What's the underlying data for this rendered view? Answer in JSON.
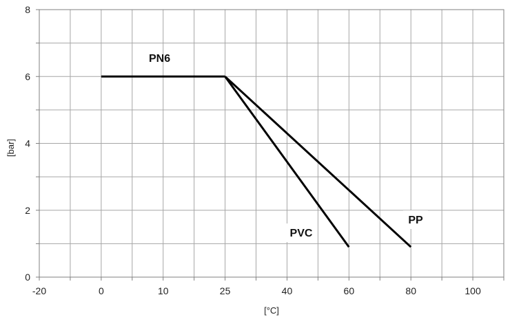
{
  "chart_data": {
    "type": "line",
    "xlabel": "[°C]",
    "ylabel": "[bar]",
    "x_tick_labels": [
      "-20",
      "0",
      "10",
      "25",
      "40",
      "60",
      "80",
      "100"
    ],
    "y_ticks": [
      0,
      2,
      4,
      6,
      8
    ],
    "ylim": [
      0,
      8
    ],
    "grid": true,
    "legend": "none",
    "series": [
      {
        "name": "PN6",
        "x": [
          "0",
          "25"
        ],
        "y": [
          6,
          6
        ]
      },
      {
        "name": "PVC",
        "x": [
          "25",
          "60"
        ],
        "y": [
          6,
          0.9
        ]
      },
      {
        "name": "PP",
        "x": [
          "25",
          "80"
        ],
        "y": [
          6,
          0.9
        ]
      }
    ]
  },
  "colors": {
    "line": "#000000",
    "grid": "#a6a6a6",
    "axis": "#7f7f7f"
  }
}
